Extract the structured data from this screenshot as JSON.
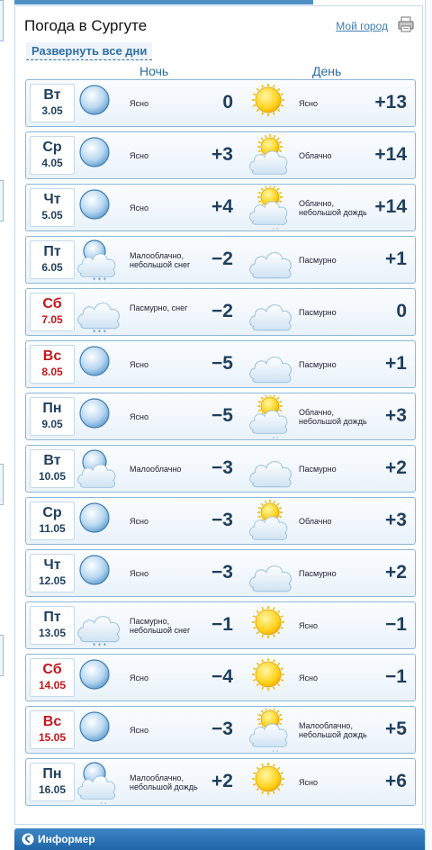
{
  "header": {
    "title": "Погода в Сургуте",
    "my_city": "Мой город"
  },
  "expand_label": "Развернуть все дни",
  "columns": {
    "night": "Ночь",
    "day": "День"
  },
  "days": [
    {
      "dow": "Вт",
      "date": "3.05",
      "weekend": false,
      "night": {
        "icon": "moon-icon",
        "desc": "Ясно",
        "temp": "0"
      },
      "day": {
        "icon": "sun-icon",
        "desc": "Ясно",
        "temp": "+13"
      }
    },
    {
      "dow": "Ср",
      "date": "4.05",
      "weekend": false,
      "night": {
        "icon": "moon-icon",
        "desc": "Ясно",
        "temp": "+3"
      },
      "day": {
        "icon": "sun-cloud-icon",
        "desc": "Облачно",
        "temp": "+14"
      }
    },
    {
      "dow": "Чт",
      "date": "5.05",
      "weekend": false,
      "night": {
        "icon": "moon-icon",
        "desc": "Ясно",
        "temp": "+4"
      },
      "day": {
        "icon": "sun-cloud-rain-icon",
        "desc": "Облачно, небольшой дождь",
        "temp": "+14"
      }
    },
    {
      "dow": "Пт",
      "date": "6.05",
      "weekend": false,
      "night": {
        "icon": "moon-cloud-snow-icon",
        "desc": "Малооблачно, небольшой снег",
        "temp": "−2"
      },
      "day": {
        "icon": "cloud-icon",
        "desc": "Пасмурно",
        "temp": "+1"
      }
    },
    {
      "dow": "Сб",
      "date": "7.05",
      "weekend": true,
      "night": {
        "icon": "cloud-snow-icon",
        "desc": "Пасмурно, снег",
        "temp": "−2"
      },
      "day": {
        "icon": "cloud-icon",
        "desc": "Пасмурно",
        "temp": "0"
      }
    },
    {
      "dow": "Вс",
      "date": "8.05",
      "weekend": true,
      "night": {
        "icon": "moon-icon",
        "desc": "Ясно",
        "temp": "−5"
      },
      "day": {
        "icon": "cloud-icon",
        "desc": "Пасмурно",
        "temp": "+1"
      }
    },
    {
      "dow": "Пн",
      "date": "9.05",
      "weekend": false,
      "night": {
        "icon": "moon-icon",
        "desc": "Ясно",
        "temp": "−5"
      },
      "day": {
        "icon": "sun-cloud-rain-icon",
        "desc": "Облачно, небольшой дождь",
        "temp": "+3"
      }
    },
    {
      "dow": "Вт",
      "date": "10.05",
      "weekend": false,
      "night": {
        "icon": "moon-cloud-icon",
        "desc": "Малооблачно",
        "temp": "−3"
      },
      "day": {
        "icon": "cloud-icon",
        "desc": "Пасмурно",
        "temp": "+2"
      }
    },
    {
      "dow": "Ср",
      "date": "11.05",
      "weekend": false,
      "night": {
        "icon": "moon-icon",
        "desc": "Ясно",
        "temp": "−3"
      },
      "day": {
        "icon": "sun-cloud-icon",
        "desc": "Облачно",
        "temp": "+3"
      }
    },
    {
      "dow": "Чт",
      "date": "12.05",
      "weekend": false,
      "night": {
        "icon": "moon-icon",
        "desc": "Ясно",
        "temp": "−3"
      },
      "day": {
        "icon": "cloud-icon",
        "desc": "Пасмурно",
        "temp": "+2"
      }
    },
    {
      "dow": "Пт",
      "date": "13.05",
      "weekend": false,
      "night": {
        "icon": "cloud-snow-icon",
        "desc": "Пасмурно, небольшой снег",
        "temp": "−1"
      },
      "day": {
        "icon": "sun-icon",
        "desc": "Ясно",
        "temp": "−1"
      }
    },
    {
      "dow": "Сб",
      "date": "14.05",
      "weekend": true,
      "night": {
        "icon": "moon-icon",
        "desc": "Ясно",
        "temp": "−4"
      },
      "day": {
        "icon": "sun-icon",
        "desc": "Ясно",
        "temp": "−1"
      }
    },
    {
      "dow": "Вс",
      "date": "15.05",
      "weekend": true,
      "night": {
        "icon": "moon-icon",
        "desc": "Ясно",
        "temp": "−3"
      },
      "day": {
        "icon": "sun-cloud-rain-icon",
        "desc": "Малооблачно, небольшой дождь",
        "temp": "+5"
      }
    },
    {
      "dow": "Пн",
      "date": "16.05",
      "weekend": false,
      "night": {
        "icon": "moon-cloud-rain-icon",
        "desc": "Малооблачно, небольшой дождь",
        "temp": "+2"
      },
      "day": {
        "icon": "sun-icon",
        "desc": "Ясно",
        "temp": "+6"
      }
    }
  ],
  "footer": {
    "label": "Информер",
    "icon": "informer-icon"
  }
}
